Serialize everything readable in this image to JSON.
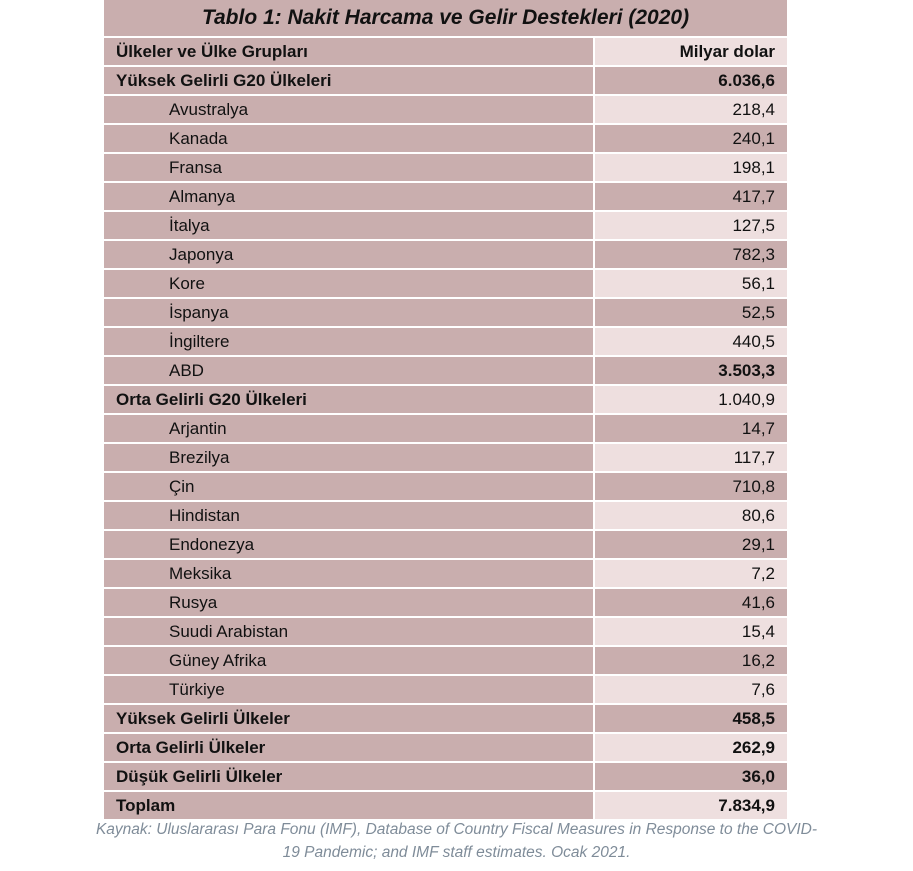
{
  "title": "Tablo 1: Nakit Harcama ve Gelir Destekleri (2020)",
  "header": {
    "col1": "Ülkeler ve Ülke Grupları",
    "col2": "Milyar dolar"
  },
  "rows": [
    {
      "name": "Yüksek Gelirli G20 Ülkeleri",
      "value": "6.036,6"
    },
    {
      "name": "Avustralya",
      "value": "218,4"
    },
    {
      "name": "Kanada",
      "value": "240,1"
    },
    {
      "name": "Fransa",
      "value": "198,1"
    },
    {
      "name": "Almanya",
      "value": "417,7"
    },
    {
      "name": "İtalya",
      "value": "127,5"
    },
    {
      "name": "Japonya",
      "value": "782,3"
    },
    {
      "name": "Kore",
      "value": "56,1"
    },
    {
      "name": "İspanya",
      "value": "52,5"
    },
    {
      "name": "İngiltere",
      "value": "440,5"
    },
    {
      "name": "ABD",
      "value": "3.503,3"
    },
    {
      "name": "Orta Gelirli G20 Ülkeleri",
      "value": "1.040,9"
    },
    {
      "name": "Arjantin",
      "value": "14,7"
    },
    {
      "name": "Brezilya",
      "value": "117,7"
    },
    {
      "name": "Çin",
      "value": "710,8"
    },
    {
      "name": "Hindistan",
      "value": "80,6"
    },
    {
      "name": "Endonezya",
      "value": "29,1"
    },
    {
      "name": "Meksika",
      "value": "7,2"
    },
    {
      "name": "Rusya",
      "value": "41,6"
    },
    {
      "name": "Suudi Arabistan",
      "value": "15,4"
    },
    {
      "name": "Güney Afrika",
      "value": "16,2"
    },
    {
      "name": "Türkiye",
      "value": "7,6"
    },
    {
      "name": "Yüksek Gelirli Ülkeler",
      "value": "458,5"
    },
    {
      "name": "Orta Gelirli Ülkeler",
      "value": "262,9"
    },
    {
      "name": "Düşük Gelirli Ülkeler",
      "value": "36,0"
    },
    {
      "name": "Toplam",
      "value": "7.834,9"
    }
  ],
  "source": {
    "line1": "Kaynak: Uluslararası Para Fonu (IMF), Database of Country Fiscal Measures in Response to the COVID-",
    "line2": "19 Pandemic; and IMF staff estimates. Ocak 2021."
  }
}
